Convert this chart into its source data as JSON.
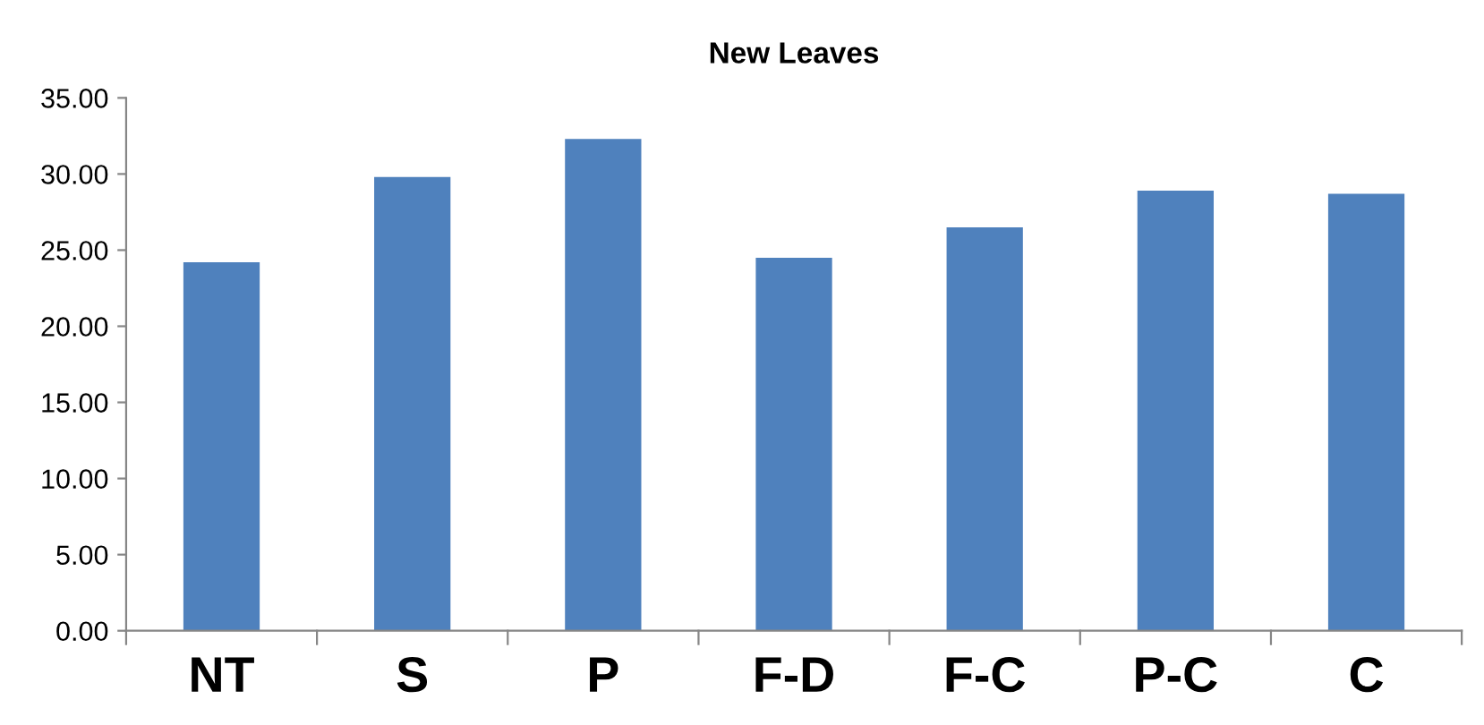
{
  "chart_data": {
    "type": "bar",
    "title": "New Leaves",
    "categories": [
      "NT",
      "S",
      "P",
      "F-D",
      "F-C",
      "P-C",
      "C"
    ],
    "values": [
      24.2,
      29.8,
      32.3,
      24.5,
      26.5,
      28.9,
      28.7
    ],
    "color": "#4f81bd",
    "ylim": [
      0,
      35
    ],
    "yticks": [
      {
        "value": 0,
        "label": "0.00"
      },
      {
        "value": 5,
        "label": "5.00"
      },
      {
        "value": 10,
        "label": "10.00"
      },
      {
        "value": 15,
        "label": "15.00"
      },
      {
        "value": 20,
        "label": "20.00"
      },
      {
        "value": 25,
        "label": "25.00"
      },
      {
        "value": 30,
        "label": "30.00"
      },
      {
        "value": 35,
        "label": "35.00"
      }
    ],
    "grid": false
  }
}
